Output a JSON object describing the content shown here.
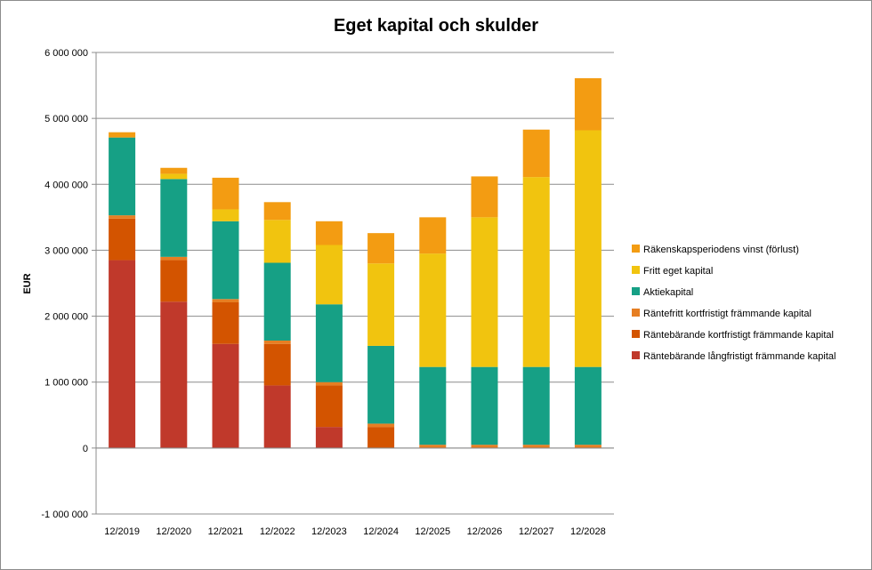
{
  "chart_data": {
    "type": "bar",
    "stacked": true,
    "title": "Eget kapital och skulder",
    "xlabel": "",
    "ylabel": "EUR",
    "ylim": [
      -1000000,
      6000000
    ],
    "yticks": [
      {
        "value": 6000000,
        "label": "6 000 000"
      },
      {
        "value": 5000000,
        "label": "5 000 000"
      },
      {
        "value": 4000000,
        "label": "4 000 000"
      },
      {
        "value": 3000000,
        "label": "3 000 000"
      },
      {
        "value": 2000000,
        "label": "2 000 000"
      },
      {
        "value": 1000000,
        "label": "1 000 000"
      },
      {
        "value": 0,
        "label": "0"
      },
      {
        "value": -1000000,
        "label": "-1 000 000"
      }
    ],
    "grid": true,
    "legend_position": "right",
    "categories": [
      "12/2019",
      "12/2020",
      "12/2021",
      "12/2022",
      "12/2023",
      "12/2024",
      "12/2025",
      "12/2026",
      "12/2027",
      "12/2028"
    ],
    "series": [
      {
        "name": "Räntebärande långfristigt främmande kapital",
        "color": "#c0392b",
        "values": [
          2850000,
          2220000,
          1580000,
          950000,
          320000,
          0,
          0,
          0,
          0,
          0
        ]
      },
      {
        "name": "Räntebärande kortfristigt främmande kapital",
        "color": "#d35400",
        "values": [
          630000,
          630000,
          630000,
          630000,
          630000,
          320000,
          0,
          0,
          0,
          0
        ]
      },
      {
        "name": "Räntefritt kortfristigt främmande kapital",
        "color": "#e67e22",
        "values": [
          50000,
          50000,
          50000,
          50000,
          50000,
          50000,
          50000,
          50000,
          50000,
          50000
        ]
      },
      {
        "name": "Aktiekapital",
        "color": "#16a085",
        "values": [
          1180000,
          1180000,
          1180000,
          1180000,
          1180000,
          1180000,
          1180000,
          1180000,
          1180000,
          1180000
        ]
      },
      {
        "name": "Fritt eget kapital",
        "color": "#f1c40f",
        "values": [
          0,
          80000,
          180000,
          650000,
          900000,
          1250000,
          1720000,
          2270000,
          2880000,
          3590000
        ]
      },
      {
        "name": "Räkenskapsperiodens vinst (förlust)",
        "color": "#f39c12",
        "values": [
          80000,
          90000,
          480000,
          270000,
          360000,
          460000,
          550000,
          620000,
          720000,
          790000
        ]
      }
    ]
  }
}
